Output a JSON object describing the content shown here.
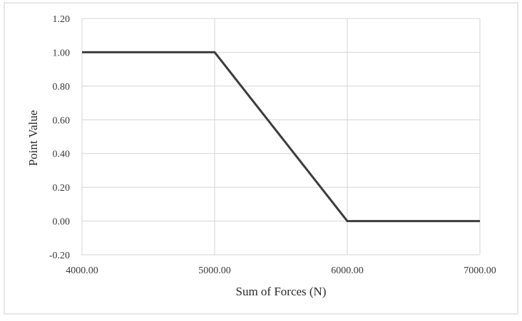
{
  "chart_data": {
    "type": "line",
    "title": "",
    "xlabel": "Sum of Forces (N)",
    "ylabel": "Point Value",
    "xlim": [
      4000,
      7000
    ],
    "ylim": [
      -0.2,
      1.2
    ],
    "x_ticks": [
      "4000.00",
      "5000.00",
      "6000.00",
      "7000.00"
    ],
    "y_ticks": [
      "-0.20",
      "0.00",
      "0.20",
      "0.40",
      "0.60",
      "0.80",
      "1.00",
      "1.20"
    ],
    "grid": true,
    "legend": "none",
    "series": [
      {
        "x": [
          4000,
          5000,
          6000,
          7000
        ],
        "y": [
          1.0,
          1.0,
          0.0,
          0.0
        ],
        "color": "#3c3c3c"
      }
    ],
    "colors": {
      "line": "#3c3c3c",
      "grid": "#d4d4d4",
      "frame": "#c8c8c8"
    }
  }
}
